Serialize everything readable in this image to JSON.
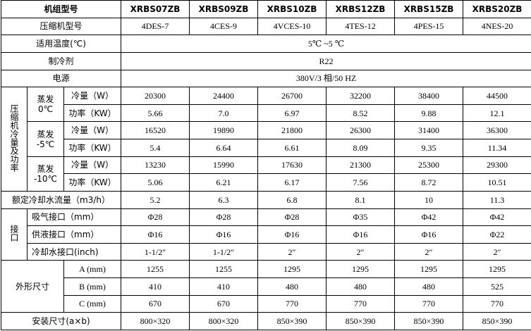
{
  "header": {
    "label": "机组型号",
    "models": [
      "XRBS07ZB",
      "XRBS09ZB",
      "XRBS10ZB",
      "XRBS12ZB",
      "XRBS15ZB",
      "XRBS20ZB"
    ]
  },
  "compressor": {
    "label": "压缩机型号",
    "values": [
      "4DES-7",
      "4CES-9",
      "4VCES-10",
      "4TES-12",
      "4PES-15",
      "4NES-20"
    ]
  },
  "temperature": {
    "label": "适用温度(℃)",
    "value": "5℃ ~5 ℃"
  },
  "refrigerant": {
    "label": "制冷剂",
    "value": "R22"
  },
  "power": {
    "label": "电源",
    "value": "380V/3 相/50 HZ"
  },
  "cooling": {
    "group_label": "压缩机冷量及功率",
    "conditions": [
      {
        "evap": "蒸发",
        "temp": "0℃",
        "rows": [
          {
            "label": "冷量（W）",
            "values": [
              "20300",
              "24400",
              "26700",
              "32200",
              "38400",
              "44500"
            ]
          },
          {
            "label": "功率（KW）",
            "values": [
              "5.66",
              "7.0",
              "6.97",
              "8.52",
              "9.88",
              "12.1"
            ]
          }
        ]
      },
      {
        "evap": "蒸发",
        "temp": "-5℃",
        "rows": [
          {
            "label": "冷量（W）",
            "values": [
              "16520",
              "19890",
              "21800",
              "26300",
              "31400",
              "36300"
            ]
          },
          {
            "label": "功率（KW）",
            "values": [
              "5.4",
              "6.64",
              "6.61",
              "8.09",
              "9.35",
              "11.34"
            ]
          }
        ]
      },
      {
        "evap": "蒸发",
        "temp": "-10℃",
        "rows": [
          {
            "label": "冷量（W）",
            "values": [
              "13230",
              "15990",
              "17630",
              "21300",
              "25300",
              "29300"
            ]
          },
          {
            "label": "功率（KW）",
            "values": [
              "5.06",
              "6.21",
              "6.17",
              "7.56",
              "8.72",
              "10.51"
            ]
          }
        ]
      }
    ]
  },
  "water_flow": {
    "label": "额定冷却水流量（m3/h）",
    "values": [
      "5.2",
      "6.3",
      "6.8",
      "8.1",
      "10",
      "11.3"
    ]
  },
  "ports": {
    "group_label": "接口",
    "rows": [
      {
        "label": "吸气接口（mm）",
        "values": [
          "Φ28",
          "Φ28",
          "Φ28",
          "Φ35",
          "Φ42",
          "Φ42"
        ]
      },
      {
        "label": "供液接口（mm）",
        "values": [
          "Φ16",
          "Φ16",
          "Φ16",
          "Φ16",
          "Φ16",
          "Φ22"
        ]
      },
      {
        "label": "冷却水接口(inch)",
        "values": [
          "1-1/2″",
          "1-1/2″",
          "2″",
          "2″",
          "2″",
          "2″"
        ]
      }
    ]
  },
  "dimensions": {
    "group_label": "外形尺寸",
    "rows": [
      {
        "label": "A (mm)",
        "values": [
          "1255",
          "1255",
          "1295",
          "1295",
          "1295",
          "1295"
        ]
      },
      {
        "label": "B (mm)",
        "values": [
          "410",
          "410",
          "480",
          "480",
          "480",
          "525"
        ]
      },
      {
        "label": "C (mm)",
        "values": [
          "670",
          "670",
          "770",
          "770",
          "770",
          "770"
        ]
      }
    ]
  },
  "install": {
    "label": "安装尺寸(a×b)",
    "values": [
      "800×320",
      "800×320",
      "850×390",
      "850×390",
      "850×390",
      "850×390"
    ]
  }
}
